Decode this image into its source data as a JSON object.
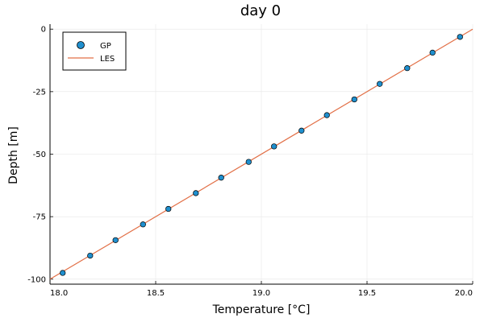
{
  "chart_data": {
    "type": "scatter",
    "title": "day 0",
    "xlabel": "Temperature [°C]",
    "ylabel": "Depth [m]",
    "xlim": [
      18.0,
      20.0
    ],
    "ylim": [
      -102,
      2
    ],
    "xticks": [
      18.0,
      18.5,
      19.0,
      19.5,
      20.0
    ],
    "xtick_labels": [
      "18.0",
      "18.5",
      "19.0",
      "19.5",
      "20.0"
    ],
    "yticks": [
      0,
      -25,
      -50,
      -75,
      -100
    ],
    "ytick_labels": [
      "0",
      "-25",
      "-50",
      "-75",
      "-100"
    ],
    "grid": true,
    "legend_position": "top-left",
    "series": [
      {
        "name": "GP",
        "kind": "scatter",
        "color": "#1f8fce",
        "x": [
          18.06,
          18.19,
          18.31,
          18.44,
          18.56,
          18.69,
          18.81,
          18.94,
          19.06,
          19.19,
          19.31,
          19.44,
          19.56,
          19.69,
          19.81,
          19.94
        ],
        "y": [
          -97.5,
          -90.6,
          -84.4,
          -78.1,
          -71.9,
          -65.6,
          -59.4,
          -53.1,
          -46.9,
          -40.6,
          -34.4,
          -28.1,
          -21.9,
          -15.6,
          -9.4,
          -3.1
        ]
      },
      {
        "name": "LES",
        "kind": "line",
        "color": "#e26f46",
        "x": [
          18.0,
          20.0
        ],
        "y": [
          -100.0,
          0.0
        ]
      }
    ]
  }
}
